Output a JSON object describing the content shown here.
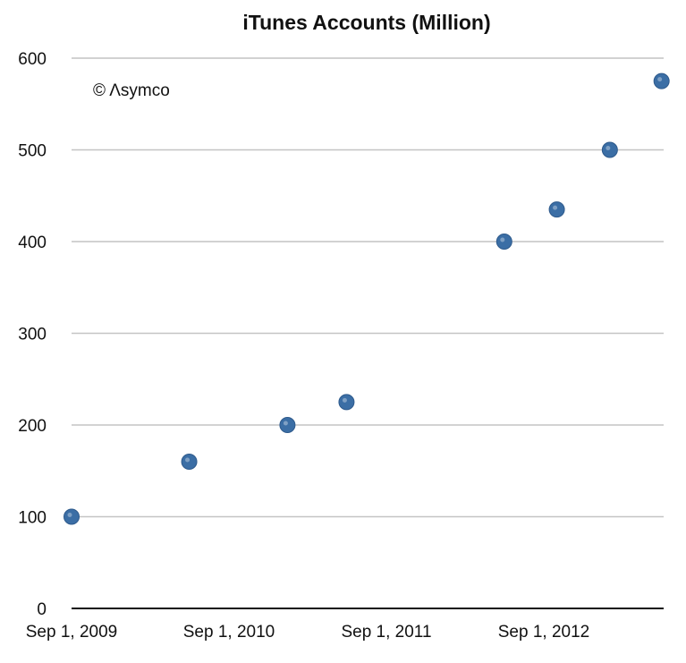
{
  "chart_data": {
    "type": "scatter",
    "title": "iTunes Accounts (Million)",
    "watermark": "© Λsymco",
    "xlabel": "",
    "ylabel": "",
    "x_tick_labels": [
      "Sep 1, 2009",
      "Sep 1, 2010",
      "Sep 1, 2011",
      "Sep 1, 2012"
    ],
    "y_ticks": [
      0,
      100,
      200,
      300,
      400,
      500,
      600
    ],
    "ylim": [
      0,
      600
    ],
    "grid": true,
    "marker_color": "#3b6ea5",
    "points": [
      {
        "x": "2009-09-01",
        "y": 100
      },
      {
        "x": "2010-06-01",
        "y": 160
      },
      {
        "x": "2011-01-15",
        "y": 200
      },
      {
        "x": "2011-06-01",
        "y": 225
      },
      {
        "x": "2012-06-01",
        "y": 400
      },
      {
        "x": "2012-10-01",
        "y": 435
      },
      {
        "x": "2013-02-01",
        "y": 500
      },
      {
        "x": "2013-06-01",
        "y": 575
      }
    ]
  }
}
